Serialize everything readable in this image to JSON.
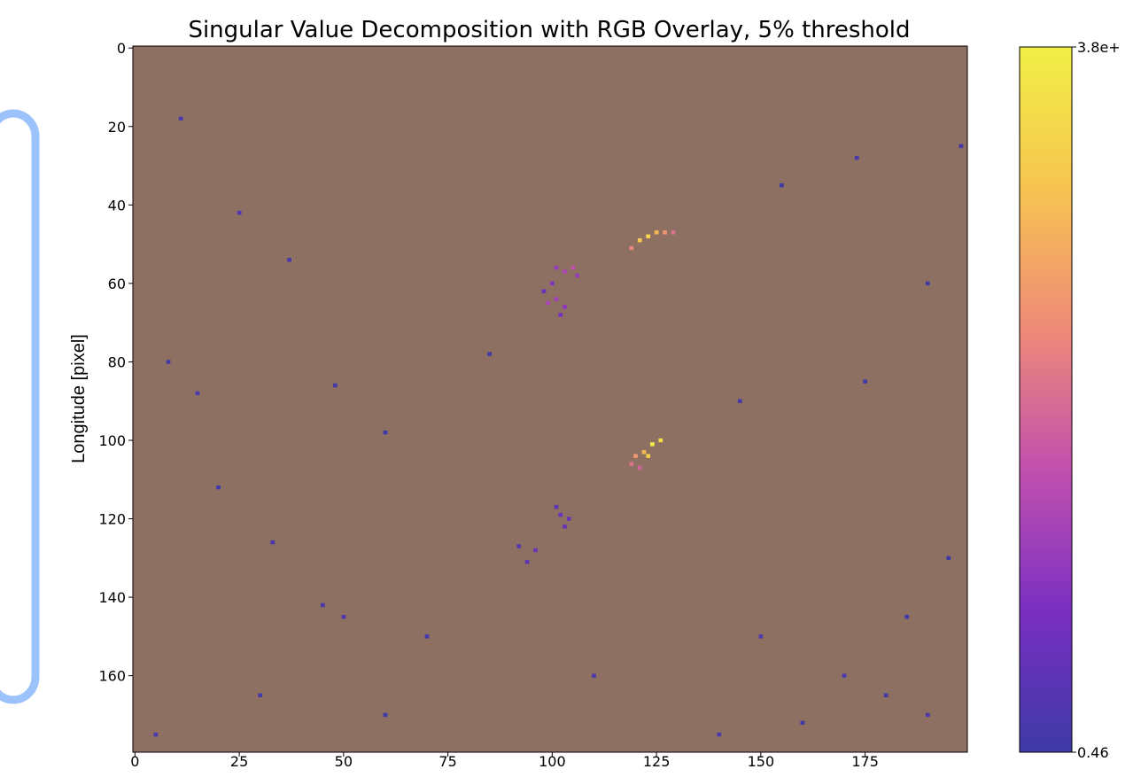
{
  "chart_data": {
    "type": "heatmap",
    "title": "Singular Value Decomposition with RGB Overlay, 5% threshold",
    "y_label": "Longitude [pixel]",
    "xlim": [
      -0.5,
      199.5
    ],
    "ylim": [
      179.5,
      -0.5
    ],
    "xticks": [
      0,
      25,
      50,
      75,
      100,
      125,
      150,
      175
    ],
    "yticks": [
      0,
      20,
      40,
      60,
      80,
      100,
      120,
      140,
      160
    ],
    "background_color": "#8d7062",
    "colormap": [
      "#3d3aa6",
      "#7a2fc2",
      "#c150ae",
      "#ee8a78",
      "#f7c450",
      "#f1f046"
    ],
    "clim": [
      0.46,
      3.8
    ],
    "colorbar_ticks": [
      {
        "value": 0.46,
        "label": "0.46"
      },
      {
        "value": 3.8,
        "label": "3.8e+"
      }
    ],
    "cells": {
      "x": [
        121,
        123,
        125,
        127,
        119,
        129,
        101,
        103,
        105,
        100,
        99,
        101,
        103,
        98,
        102,
        106,
        120,
        122,
        124,
        126,
        119,
        121,
        123,
        102,
        103,
        101,
        104,
        96,
        94,
        92,
        11,
        25,
        37,
        8,
        15,
        48,
        60,
        20,
        33,
        45,
        50,
        70,
        150,
        170,
        180,
        190,
        160,
        140,
        30,
        5,
        195,
        185,
        60,
        110,
        85,
        145,
        175,
        190,
        198,
        155,
        173
      ],
      "y": [
        49,
        48,
        47,
        47,
        51,
        47,
        56,
        57,
        56,
        60,
        65,
        64,
        66,
        62,
        68,
        58,
        104,
        103,
        101,
        100,
        106,
        107,
        104,
        119,
        122,
        117,
        120,
        128,
        131,
        127,
        18,
        42,
        54,
        80,
        88,
        86,
        98,
        112,
        126,
        142,
        145,
        150,
        150,
        160,
        165,
        170,
        172,
        175,
        165,
        175,
        130,
        145,
        170,
        160,
        78,
        90,
        85,
        60,
        25,
        35,
        28
      ],
      "values": [
        3.2,
        3.4,
        3.0,
        2.6,
        2.4,
        2.2,
        1.4,
        1.6,
        1.8,
        1.2,
        1.6,
        1.5,
        1.3,
        1.0,
        1.1,
        1.4,
        2.6,
        3.0,
        3.8,
        3.5,
        2.2,
        2.0,
        3.3,
        0.9,
        0.9,
        0.8,
        0.9,
        0.9,
        0.8,
        0.7,
        0.6,
        0.7,
        0.6,
        0.5,
        0.6,
        0.5,
        0.5,
        0.5,
        0.6,
        0.6,
        0.7,
        0.5,
        0.6,
        0.6,
        0.5,
        0.6,
        0.5,
        0.6,
        0.5,
        0.6,
        0.5,
        0.5,
        0.5,
        0.6,
        0.5,
        0.5,
        0.5,
        0.5,
        0.5,
        0.5,
        0.6
      ]
    }
  }
}
